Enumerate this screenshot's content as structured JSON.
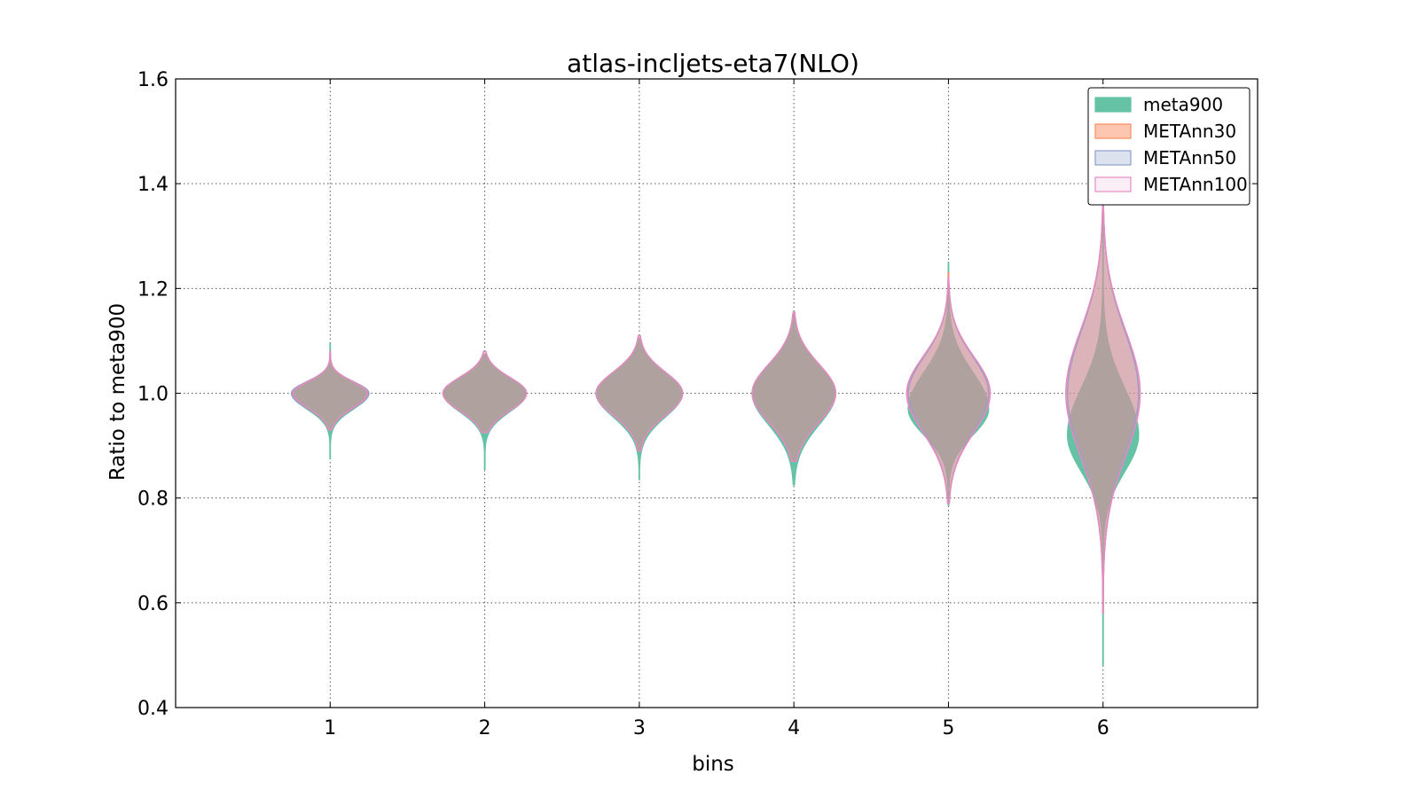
{
  "chart_data": {
    "type": "violin",
    "title": "atlas-incljets-eta7(NLO)",
    "xlabel": "bins",
    "ylabel": "Ratio to meta900",
    "categories": [
      "1",
      "2",
      "3",
      "4",
      "5",
      "6"
    ],
    "xlim": [
      0,
      7
    ],
    "ylim": [
      0.4,
      1.6
    ],
    "yticks": [
      "0.4",
      "0.6",
      "0.8",
      "1.0",
      "1.2",
      "1.4",
      "1.6"
    ],
    "grid": true,
    "legend_position": "top-right",
    "series": [
      {
        "name": "meta900",
        "color": "#66c2a5",
        "fill_opacity": 1.0,
        "violins": [
          {
            "min": 0.875,
            "max": 1.095,
            "center": 1.0,
            "half_width": 0.25,
            "sigma_up": 0.02,
            "sigma_down": 0.03
          },
          {
            "min": 0.855,
            "max": 1.075,
            "center": 1.0,
            "half_width": 0.27,
            "sigma_up": 0.03,
            "sigma_down": 0.035
          },
          {
            "min": 0.835,
            "max": 1.105,
            "center": 1.0,
            "half_width": 0.28,
            "sigma_up": 0.04,
            "sigma_down": 0.045
          },
          {
            "min": 0.825,
            "max": 1.15,
            "center": 1.0,
            "half_width": 0.27,
            "sigma_up": 0.055,
            "sigma_down": 0.06
          },
          {
            "min": 0.785,
            "max": 1.25,
            "center": 0.97,
            "half_width": 0.26,
            "sigma_up": 0.07,
            "sigma_down": 0.05
          },
          {
            "min": 0.48,
            "max": 1.41,
            "center": 0.92,
            "half_width": 0.23,
            "sigma_up": 0.09,
            "sigma_down": 0.07
          }
        ]
      },
      {
        "name": "METAnn30",
        "color": "#fc8d62",
        "fill_opacity": 0.5,
        "violins": [
          {
            "min": 0.93,
            "max": 1.075,
            "center": 1.0,
            "half_width": 0.25,
            "sigma_up": 0.022,
            "sigma_down": 0.028
          },
          {
            "min": 0.925,
            "max": 1.075,
            "center": 1.0,
            "half_width": 0.27,
            "sigma_up": 0.03,
            "sigma_down": 0.033
          },
          {
            "min": 0.89,
            "max": 1.105,
            "center": 1.0,
            "half_width": 0.28,
            "sigma_up": 0.04,
            "sigma_down": 0.042
          },
          {
            "min": 0.87,
            "max": 1.15,
            "center": 1.0,
            "half_width": 0.27,
            "sigma_up": 0.055,
            "sigma_down": 0.055
          },
          {
            "min": 0.79,
            "max": 1.23,
            "center": 1.0,
            "half_width": 0.27,
            "sigma_up": 0.07,
            "sigma_down": 0.075
          },
          {
            "min": 0.58,
            "max": 1.41,
            "center": 1.0,
            "half_width": 0.24,
            "sigma_up": 0.12,
            "sigma_down": 0.12
          }
        ]
      },
      {
        "name": "METAnn50",
        "color": "#8da0cb",
        "fill_opacity": 0.3,
        "violins": [
          {
            "min": 0.93,
            "max": 1.08,
            "center": 1.0,
            "half_width": 0.25,
            "sigma_up": 0.022,
            "sigma_down": 0.028
          },
          {
            "min": 0.925,
            "max": 1.08,
            "center": 1.0,
            "half_width": 0.27,
            "sigma_up": 0.03,
            "sigma_down": 0.033
          },
          {
            "min": 0.89,
            "max": 1.11,
            "center": 1.0,
            "half_width": 0.28,
            "sigma_up": 0.04,
            "sigma_down": 0.042
          },
          {
            "min": 0.87,
            "max": 1.155,
            "center": 1.0,
            "half_width": 0.27,
            "sigma_up": 0.055,
            "sigma_down": 0.055
          },
          {
            "min": 0.79,
            "max": 1.22,
            "center": 1.0,
            "half_width": 0.26,
            "sigma_up": 0.07,
            "sigma_down": 0.075
          },
          {
            "min": 0.58,
            "max": 1.4,
            "center": 1.0,
            "half_width": 0.23,
            "sigma_up": 0.12,
            "sigma_down": 0.12
          }
        ]
      },
      {
        "name": "METAnn100",
        "color": "#e78ac3",
        "fill_opacity": 0.15,
        "violins": [
          {
            "min": 0.93,
            "max": 1.08,
            "center": 1.0,
            "half_width": 0.24,
            "sigma_up": 0.022,
            "sigma_down": 0.028
          },
          {
            "min": 0.925,
            "max": 1.08,
            "center": 1.0,
            "half_width": 0.27,
            "sigma_up": 0.03,
            "sigma_down": 0.033
          },
          {
            "min": 0.89,
            "max": 1.11,
            "center": 1.0,
            "half_width": 0.28,
            "sigma_up": 0.04,
            "sigma_down": 0.042
          },
          {
            "min": 0.87,
            "max": 1.155,
            "center": 1.0,
            "half_width": 0.27,
            "sigma_up": 0.055,
            "sigma_down": 0.055
          },
          {
            "min": 0.79,
            "max": 1.22,
            "center": 1.0,
            "half_width": 0.27,
            "sigma_up": 0.07,
            "sigma_down": 0.075
          },
          {
            "min": 0.58,
            "max": 1.41,
            "center": 1.0,
            "half_width": 0.24,
            "sigma_up": 0.12,
            "sigma_down": 0.12
          }
        ]
      }
    ]
  }
}
